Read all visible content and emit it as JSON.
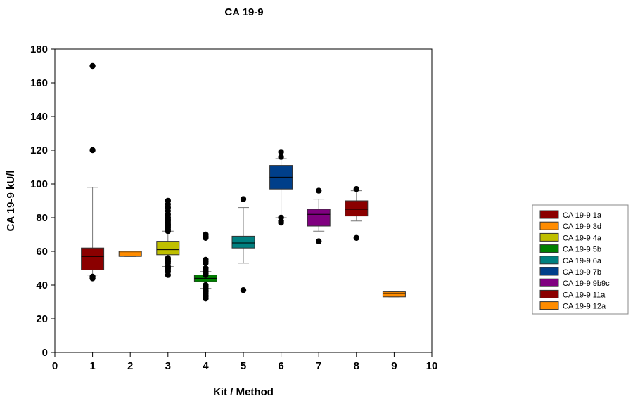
{
  "chart_data": {
    "type": "box",
    "title": "CA 19-9",
    "xlabel": "Kit / Method",
    "ylabel": "CA 19-9 kU/l",
    "xlim": [
      0,
      10
    ],
    "ylim": [
      0,
      180
    ],
    "xticks": [
      0,
      1,
      2,
      3,
      4,
      5,
      6,
      7,
      8,
      9,
      10
    ],
    "yticks": [
      0,
      20,
      40,
      60,
      80,
      100,
      120,
      140,
      160,
      180
    ],
    "grid": false,
    "legend_position": "right",
    "series": [
      {
        "name": "CA 19-9 1a",
        "x": 1,
        "color": "#8b0000",
        "q1": 49,
        "median": 57,
        "q3": 62,
        "whisker_low": 46,
        "whisker_high": 98,
        "outliers": [
          170,
          120,
          45,
          44
        ]
      },
      {
        "name": "CA 19-9 3d",
        "x": 2,
        "color": "#ff8c00",
        "q1": 57,
        "median": 59,
        "q3": 60,
        "whisker_low": 57,
        "whisker_high": 60,
        "outliers": []
      },
      {
        "name": "CA 19-9 4a",
        "x": 3,
        "color": "#bfbf00",
        "q1": 58,
        "median": 61,
        "q3": 66,
        "whisker_low": 51,
        "whisker_high": 72,
        "outliers": [
          90,
          88,
          86,
          84,
          82,
          80,
          79,
          78,
          77,
          76,
          75,
          74,
          73,
          72,
          56,
          55,
          54,
          53,
          51,
          50,
          49,
          48,
          46
        ]
      },
      {
        "name": "CA 19-9 5b",
        "x": 4,
        "color": "#008000",
        "q1": 42,
        "median": 44,
        "q3": 46,
        "whisker_low": 38,
        "whisker_high": 48,
        "outliers": [
          70,
          69,
          68,
          55,
          54,
          53,
          50,
          49,
          48,
          47,
          46,
          40,
          39,
          38,
          37,
          36,
          35,
          34,
          33,
          32
        ]
      },
      {
        "name": "CA 19-9 6a",
        "x": 5,
        "color": "#008080",
        "q1": 62,
        "median": 65,
        "q3": 69,
        "whisker_low": 53,
        "whisker_high": 86,
        "outliers": [
          91,
          37
        ]
      },
      {
        "name": "CA 19-9 7b",
        "x": 6,
        "color": "#003f8a",
        "q1": 97,
        "median": 104,
        "q3": 111,
        "whisker_low": 80,
        "whisker_high": 115,
        "outliers": [
          119,
          116,
          80,
          78,
          77
        ]
      },
      {
        "name": "CA 19-9 9b9c",
        "x": 7,
        "color": "#800080",
        "q1": 75,
        "median": 82,
        "q3": 85,
        "whisker_low": 72,
        "whisker_high": 91,
        "outliers": [
          96,
          66
        ]
      },
      {
        "name": "CA 19-9 11a",
        "x": 8,
        "color": "#8b0000",
        "q1": 81,
        "median": 85,
        "q3": 90,
        "whisker_low": 78,
        "whisker_high": 96,
        "outliers": [
          97,
          68
        ]
      },
      {
        "name": "CA 19-9 12a",
        "x": 9,
        "color": "#ff8c00",
        "q1": 33,
        "median": 35,
        "q3": 36,
        "whisker_low": 33,
        "whisker_high": 36,
        "outliers": []
      }
    ]
  }
}
